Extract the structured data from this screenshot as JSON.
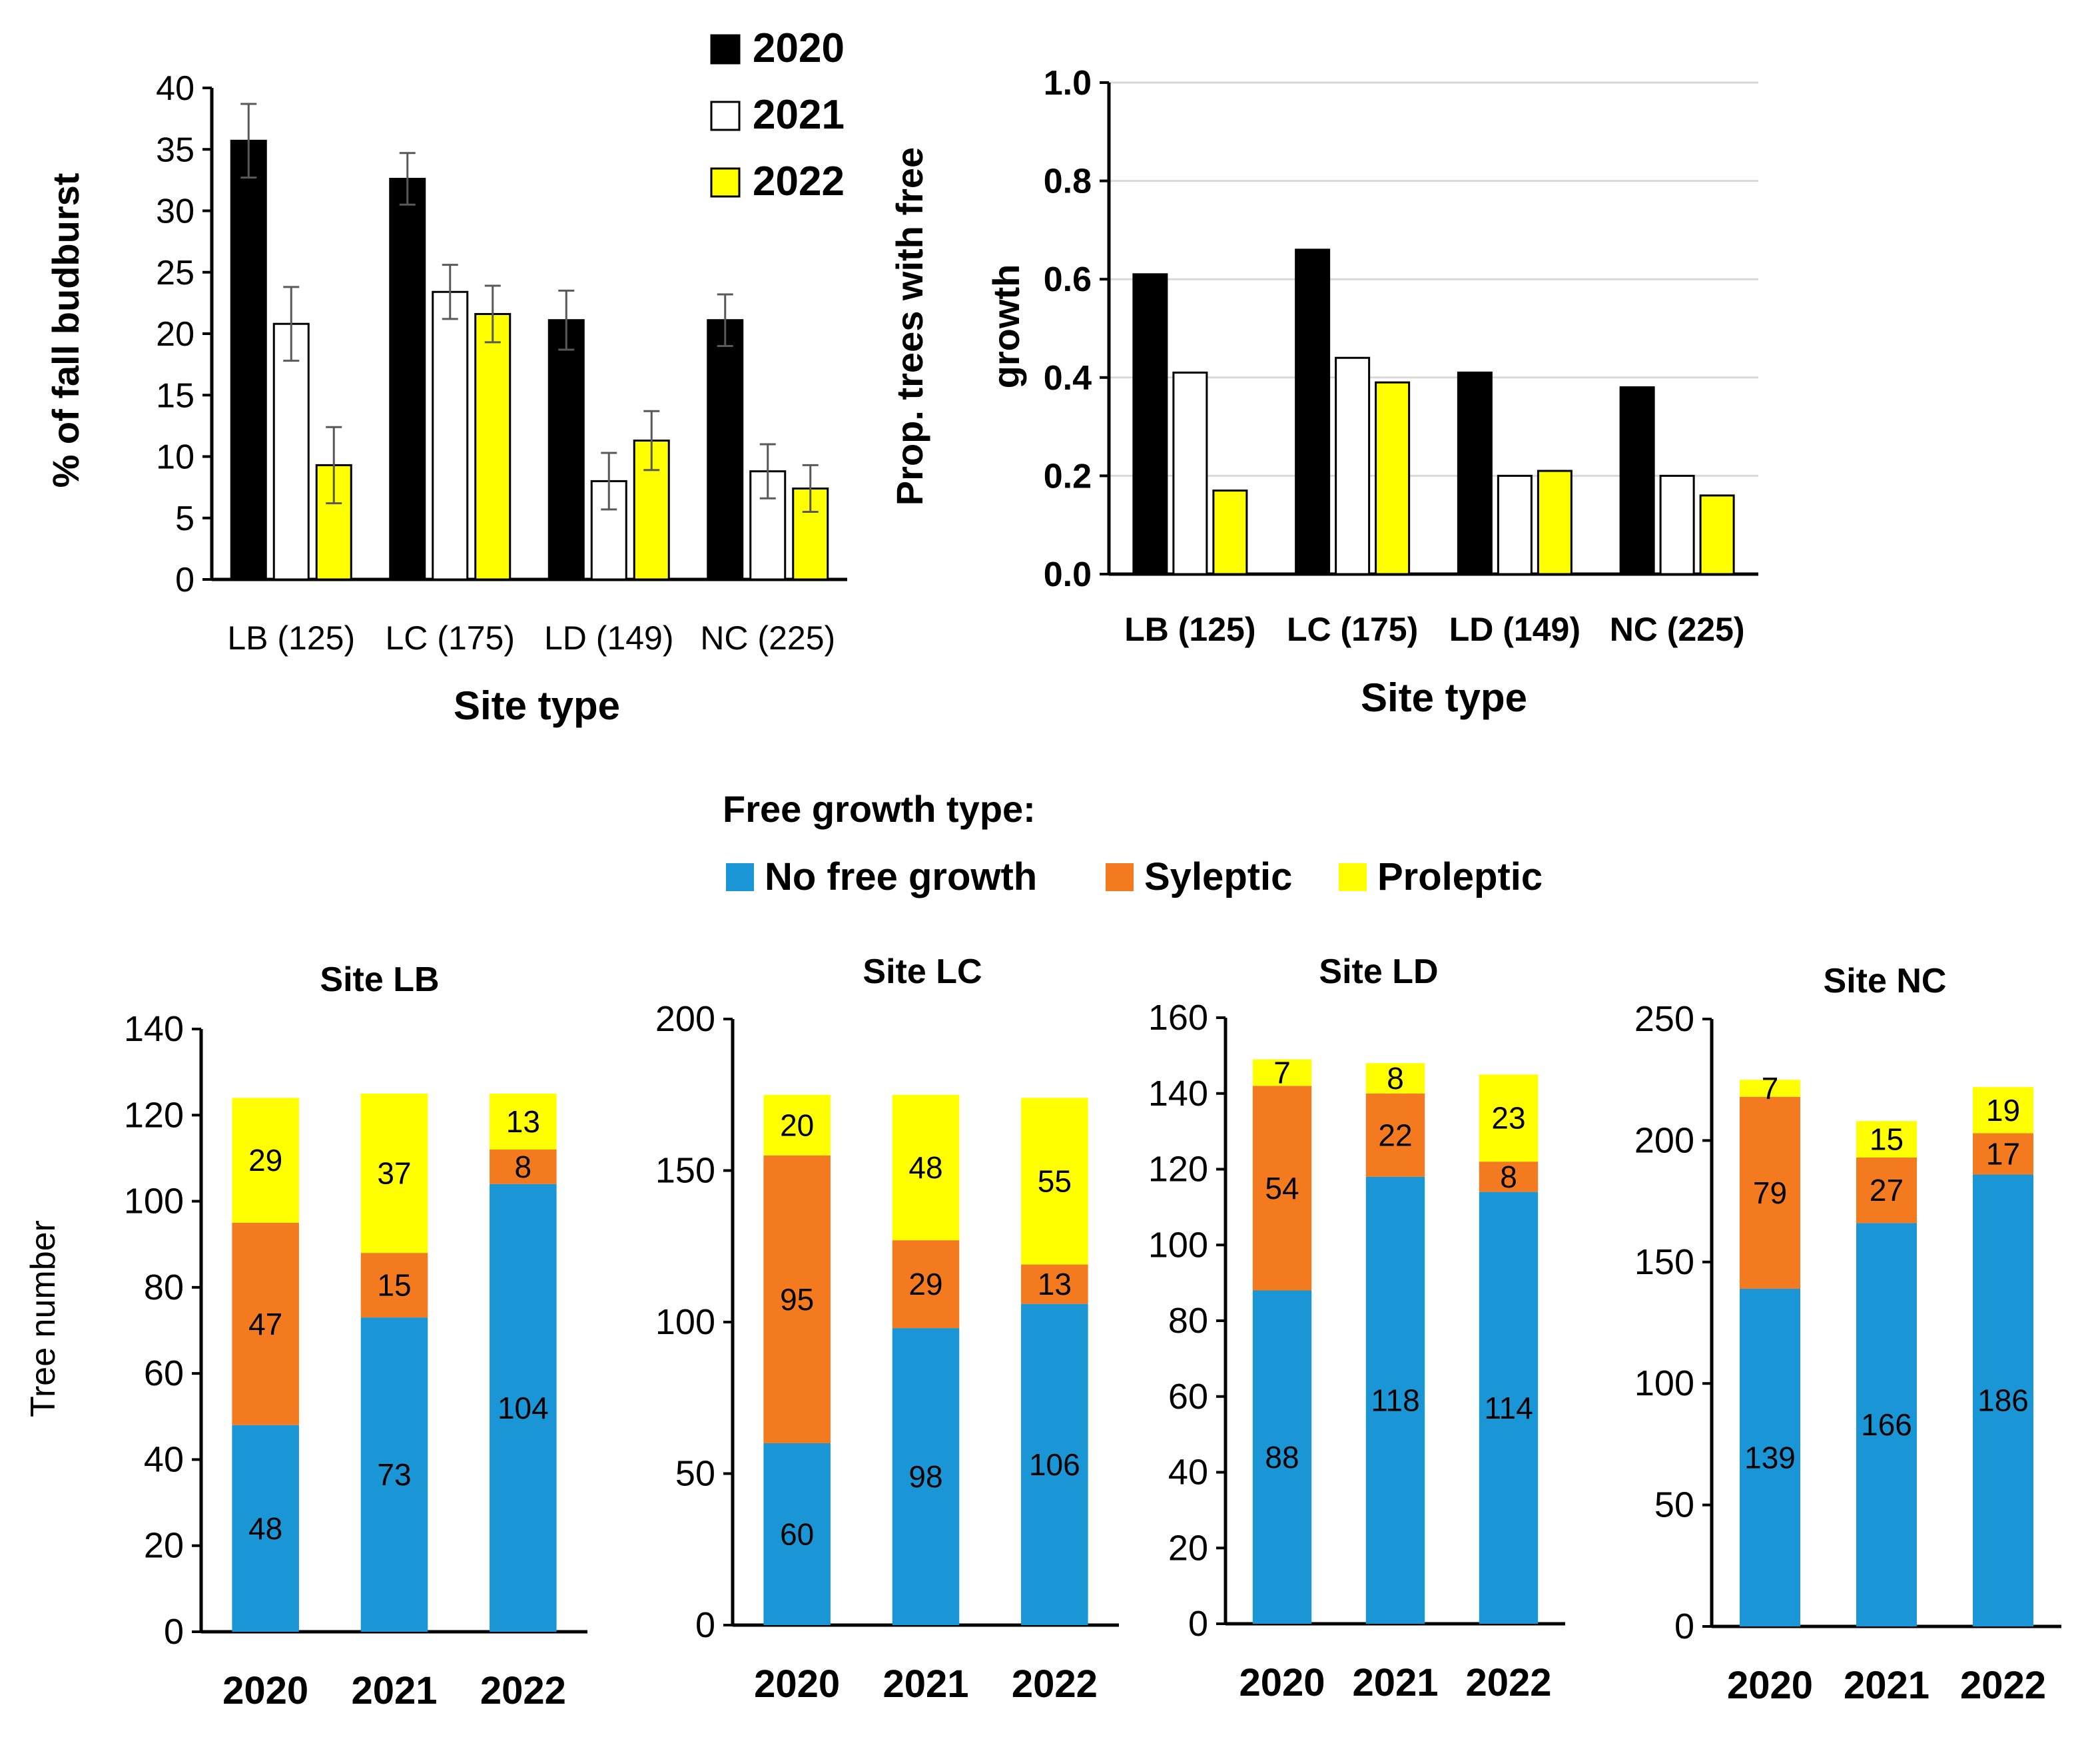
{
  "colors": {
    "y2020": "#000000",
    "y2021": "#ffffff",
    "y2022": "#ffff00",
    "no_free_growth": "#1a96d6",
    "syleptic": "#f47a20",
    "proleptic": "#ffff00",
    "grid": "#d9d9d9",
    "error_bar": "#595959",
    "segment_label": "#404040"
  },
  "chart_data": [
    {
      "id": "fall-budburst",
      "type": "bar",
      "xlabel": "Site type",
      "ylabel": "% of fall budburst",
      "ylim": [
        0,
        40
      ],
      "yticks": [
        "0",
        "5",
        "10",
        "15",
        "20",
        "25",
        "30",
        "35",
        "40"
      ],
      "grid": false,
      "legend": "top-right",
      "categories": [
        "LB (125)",
        "LC (175)",
        "LD (149)",
        "NC (225)"
      ],
      "series": [
        {
          "name": "2020",
          "values": [
            35.7,
            32.6,
            21.1,
            21.1
          ],
          "errors": [
            3.0,
            2.1,
            2.4,
            2.1
          ]
        },
        {
          "name": "2021",
          "values": [
            20.8,
            23.4,
            8.0,
            8.8
          ],
          "errors": [
            3.0,
            2.2,
            2.3,
            2.2
          ]
        },
        {
          "name": "2022",
          "values": [
            9.3,
            21.6,
            11.3,
            7.4
          ],
          "errors": [
            3.1,
            2.3,
            2.4,
            1.9
          ]
        }
      ]
    },
    {
      "id": "prop-free-growth",
      "type": "bar",
      "xlabel": "Site type",
      "ylabel_lines": [
        "Prop. trees with free",
        "growth"
      ],
      "ylim": [
        0,
        1.0
      ],
      "yticks": [
        "0.0",
        "0.2",
        "0.4",
        "0.6",
        "0.8",
        "1.0"
      ],
      "grid": true,
      "categories": [
        "LB (125)",
        "LC (175)",
        "LD (149)",
        "NC (225)"
      ],
      "series": [
        {
          "name": "2020",
          "values": [
            0.61,
            0.66,
            0.41,
            0.38
          ]
        },
        {
          "name": "2021",
          "values": [
            0.41,
            0.44,
            0.2,
            0.2
          ]
        },
        {
          "name": "2022",
          "values": [
            0.17,
            0.39,
            0.21,
            0.16
          ]
        }
      ]
    },
    {
      "id": "site-lb",
      "type": "stacked-bar",
      "title": "Site LB",
      "ylabel": "Tree number",
      "ylim": [
        0,
        140
      ],
      "yticks": [
        "0",
        "20",
        "40",
        "60",
        "80",
        "100",
        "120",
        "140"
      ],
      "categories": [
        "2020",
        "2021",
        "2022"
      ],
      "series": [
        {
          "name": "No free growth",
          "values": [
            48,
            73,
            104
          ]
        },
        {
          "name": "Syleptic",
          "values": [
            47,
            15,
            8
          ]
        },
        {
          "name": "Proleptic",
          "values": [
            29,
            37,
            13
          ]
        }
      ]
    },
    {
      "id": "site-lc",
      "type": "stacked-bar",
      "title": "Site LC",
      "ylim": [
        0,
        200
      ],
      "yticks": [
        "0",
        "50",
        "100",
        "150",
        "200"
      ],
      "categories": [
        "2020",
        "2021",
        "2022"
      ],
      "series": [
        {
          "name": "No free growth",
          "values": [
            60,
            98,
            106
          ]
        },
        {
          "name": "Syleptic",
          "values": [
            95,
            29,
            13
          ]
        },
        {
          "name": "Proleptic",
          "values": [
            20,
            48,
            55
          ]
        }
      ]
    },
    {
      "id": "site-ld",
      "type": "stacked-bar",
      "title": "Site LD",
      "ylim": [
        0,
        160
      ],
      "yticks": [
        "0",
        "20",
        "40",
        "60",
        "80",
        "100",
        "120",
        "140",
        "160"
      ],
      "categories": [
        "2020",
        "2021",
        "2022"
      ],
      "series": [
        {
          "name": "No free growth",
          "values": [
            88,
            118,
            114
          ]
        },
        {
          "name": "Syleptic",
          "values": [
            54,
            22,
            8
          ]
        },
        {
          "name": "Proleptic",
          "values": [
            7,
            8,
            23
          ]
        }
      ]
    },
    {
      "id": "site-nc",
      "type": "stacked-bar",
      "title": "Site NC",
      "ylim": [
        0,
        250
      ],
      "yticks": [
        "0",
        "50",
        "100",
        "150",
        "200",
        "250"
      ],
      "categories": [
        "2020",
        "2021",
        "2022"
      ],
      "series": [
        {
          "name": "No free growth",
          "values": [
            139,
            166,
            186
          ]
        },
        {
          "name": "Syleptic",
          "values": [
            79,
            27,
            17
          ]
        },
        {
          "name": "Proleptic",
          "values": [
            7,
            15,
            19
          ]
        }
      ]
    }
  ],
  "legend_top": {
    "labels": [
      "2020",
      "2021",
      "2022"
    ]
  },
  "legend_bottom": {
    "title": "Free growth type:",
    "labels": [
      "No free growth",
      "Syleptic",
      "Proleptic"
    ]
  }
}
